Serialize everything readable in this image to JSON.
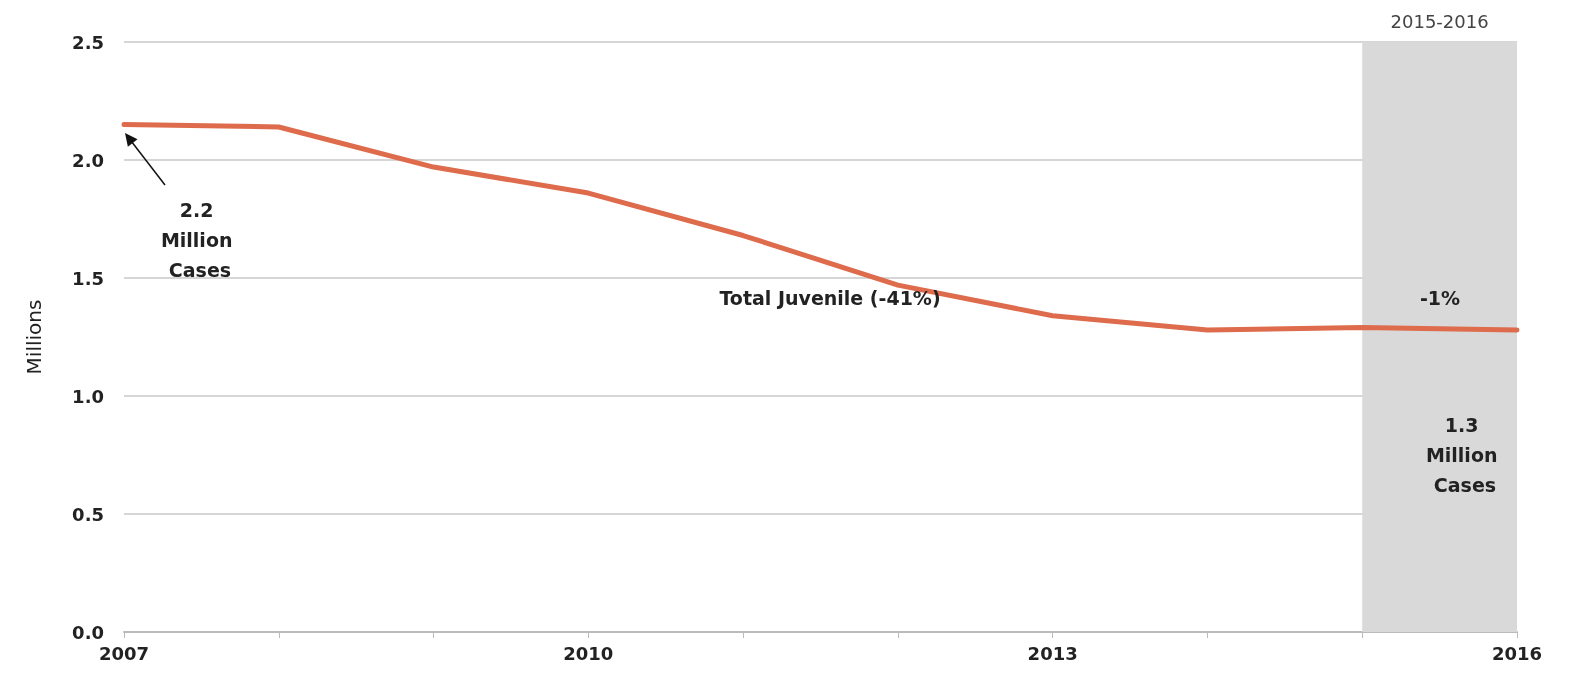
{
  "chart_data": {
    "type": "line",
    "ylabel": "Millions",
    "x": [
      2007,
      2008,
      2009,
      2010,
      2011,
      2012,
      2013,
      2014,
      2015,
      2016
    ],
    "series": [
      {
        "color": "#dd6b4c",
        "values": [
          2.15,
          2.14,
          1.97,
          1.86,
          1.68,
          1.47,
          1.34,
          1.28,
          1.29,
          1.28
        ]
      }
    ],
    "xlim": [
      2007,
      2016
    ],
    "xticks": [
      2007,
      {
        "value": 2008,
        "label": null
      },
      {
        "value": 2009,
        "label": null
      },
      2010,
      {
        "value": 2011,
        "label": null
      },
      {
        "value": 2012,
        "label": null
      },
      2013,
      {
        "value": 2014,
        "label": null
      },
      {
        "value": 2015,
        "label": null
      },
      2016
    ],
    "ylim": [
      0,
      2.5
    ],
    "yticks": [
      {
        "value": 0,
        "label": "0.0"
      },
      {
        "value": 0.5,
        "label": "0.5"
      },
      {
        "value": 1,
        "label": "1.0"
      },
      {
        "value": 1.5,
        "label": "1.5"
      },
      {
        "value": 2,
        "label": "2.0"
      },
      {
        "value": 2.5,
        "label": "2.5"
      }
    ],
    "bands": [
      {
        "axis": "x",
        "from": 2015,
        "to": 2016,
        "label": "2015-2016",
        "color": "#d9d9d9"
      }
    ],
    "annotations": [
      "2.2 Million Cases",
      "1.3 Million Cases",
      "Total Juvenile (-41%)",
      "-1%"
    ],
    "grid": "y",
    "marker": "none",
    "line_style": "solid"
  }
}
